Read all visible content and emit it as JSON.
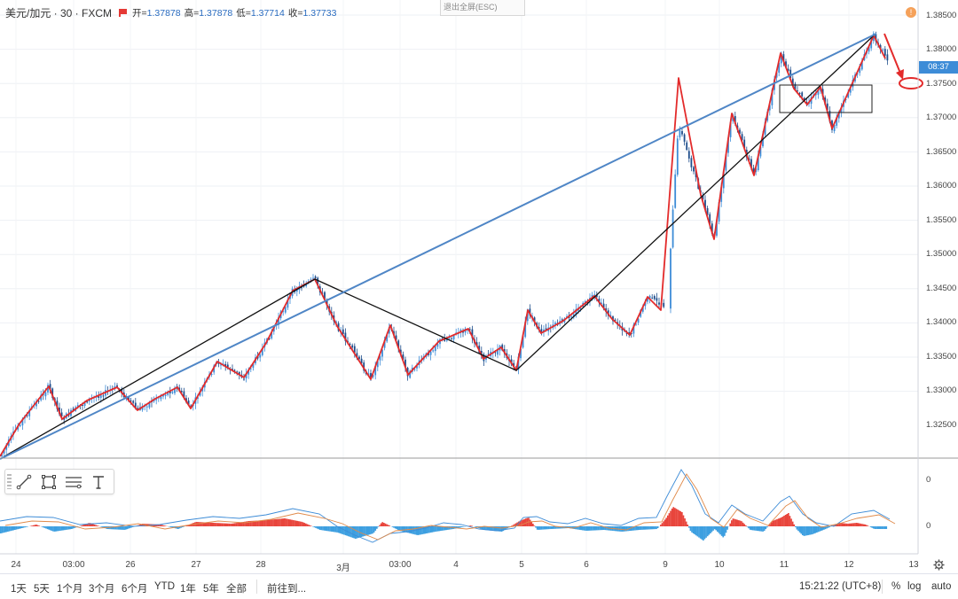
{
  "header": {
    "symbol": "美元/加元 · 30 · FXCM",
    "open_label": "开=",
    "open_value": "1.37878",
    "high_label": "高=",
    "high_value": "1.37878",
    "low_label": "低=",
    "low_value": "1.37714",
    "close_label": "收=",
    "close_value": "1.37733"
  },
  "exit_fullscreen": "退出全屏(ESC)",
  "alert_icon": "!",
  "current_price_tag": "08:37",
  "price_axis": [
    "1.38500",
    "1.38000",
    "1.37500",
    "1.37000",
    "1.36500",
    "1.36000",
    "1.35500",
    "1.35000",
    "1.34500",
    "1.34000",
    "1.33500",
    "1.33000",
    "1.32500"
  ],
  "indicator_axis": [
    "0",
    "0"
  ],
  "time_axis": [
    "24",
    "03:00",
    "26",
    "27",
    "28",
    "3月",
    "03:00",
    "4",
    "5",
    "6",
    "9",
    "10",
    "11",
    "12",
    "13"
  ],
  "drawing_tools": [
    "trend-line-icon",
    "rectangle-icon",
    "fib-lines-icon",
    "text-tool-icon"
  ],
  "bottom_bar": {
    "ranges": [
      "1天",
      "5天",
      "1个月",
      "3个月",
      "6个月",
      "YTD",
      "1年",
      "5年",
      "全部"
    ],
    "goto": "前往到...",
    "clock": "15:21:22 (UTC+8)",
    "percent": "%",
    "log": "log",
    "auto": "auto"
  },
  "colors": {
    "candle_up": "#3d8cd7",
    "candle_down": "#1f4e8c",
    "zigzag": "#e32b2b",
    "trend_line": "#111111",
    "channel_line": "#4f86c6",
    "macd_pos": "#e8453c",
    "macd_neg": "#3d9fe0"
  }
}
